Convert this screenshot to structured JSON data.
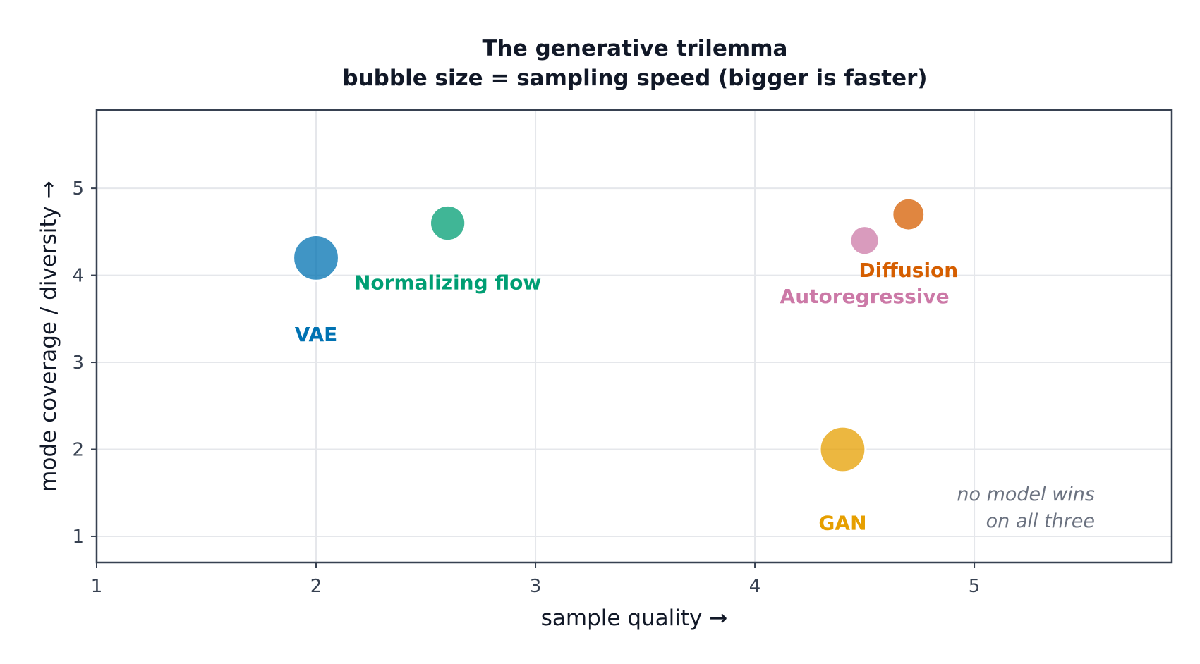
{
  "chart_data": {
    "type": "scatter",
    "title": "The generative trilemma",
    "subtitle": "bubble size = sampling speed (bigger is faster)",
    "xlabel": "sample quality →",
    "ylabel": "mode coverage / diversity →",
    "xlim": [
      1,
      5.9
    ],
    "ylim": [
      0.7,
      5.9
    ],
    "xticks": [
      1,
      2,
      3,
      4,
      5
    ],
    "yticks": [
      1,
      2,
      3,
      4,
      5
    ],
    "grid": true,
    "annotation": [
      "no model wins",
      "on all three"
    ],
    "points": [
      {
        "name": "VAE",
        "x": 2.0,
        "y": 4.2,
        "size": 5,
        "color": "#0072B2"
      },
      {
        "name": "Normalizing flow",
        "x": 2.6,
        "y": 4.6,
        "size": 3,
        "color": "#009E73"
      },
      {
        "name": "Autoregressive",
        "x": 4.5,
        "y": 4.4,
        "size": 2,
        "color": "#CC79A7"
      },
      {
        "name": "Diffusion",
        "x": 4.7,
        "y": 4.7,
        "size": 2.5,
        "color": "#D55E00"
      },
      {
        "name": "GAN",
        "x": 4.4,
        "y": 2.0,
        "size": 5,
        "color": "#E69F00"
      }
    ]
  }
}
